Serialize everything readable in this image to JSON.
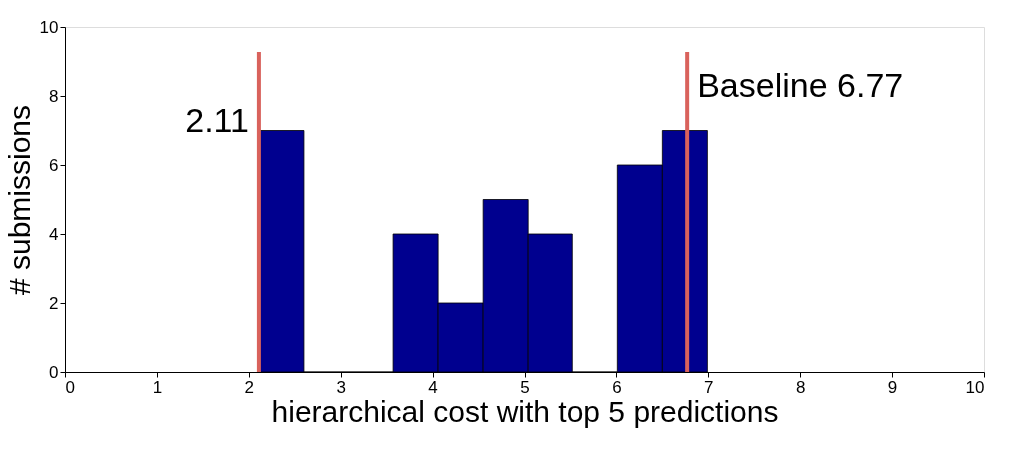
{
  "chart_data": {
    "type": "histogram",
    "xlabel": "hierarchical cost with top 5 predictions",
    "ylabel": "# submissions",
    "bins": [
      2.11,
      2.6,
      3.57,
      4.06,
      4.55,
      5.04,
      5.52,
      6.01,
      6.5,
      6.99
    ],
    "values": [
      7,
      0,
      4,
      2,
      5,
      4,
      0,
      6,
      7
    ],
    "color": "#00008f",
    "xlim": [
      0,
      10
    ],
    "xticks": [
      0,
      1,
      2,
      3,
      4,
      5,
      6,
      7,
      8,
      9,
      10
    ],
    "ylim": [
      0,
      10
    ],
    "yticks": [
      0,
      2,
      4,
      6,
      8,
      10
    ],
    "grid": false,
    "ref_lines": [
      {
        "axis": "x",
        "value": 2.11,
        "label": "2.11",
        "color": "#d9625c"
      },
      {
        "axis": "x",
        "value": 6.77,
        "label": "Baseline 6.77",
        "color": "#d9625c"
      }
    ]
  }
}
